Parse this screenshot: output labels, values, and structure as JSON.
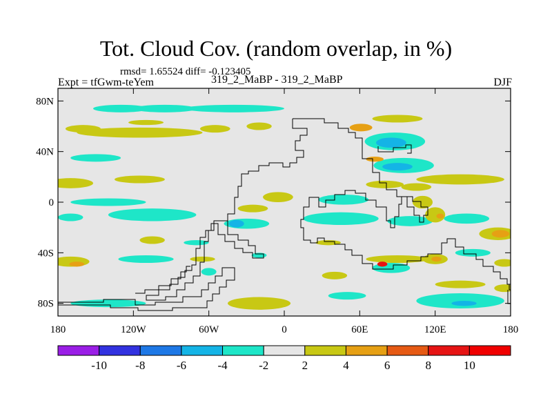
{
  "title": "Tot. Cloud Cov. (random overlap, in %)",
  "stats": "rmsd= 1.65524 diff= -0.123405",
  "expt": "Expt = tfGwm-teYem",
  "case_label": "319_2_MaBP - 319_2_MaBP",
  "season": "DJF",
  "chart_data": {
    "type": "heatmap",
    "title": "Tot. Cloud Cov. (random overlap, in %)",
    "xlim": [
      -180,
      180
    ],
    "ylim": [
      -90,
      90
    ],
    "x_ticks": [
      -180,
      -120,
      -60,
      0,
      60,
      120,
      180
    ],
    "x_tick_labels": [
      "180",
      "120W",
      "60W",
      "0",
      "60E",
      "120E",
      "180"
    ],
    "y_ticks": [
      80,
      40,
      0,
      -40,
      -80
    ],
    "y_tick_labels": [
      "80N",
      "40N",
      "0",
      "40S",
      "80S"
    ],
    "colorbar": {
      "levels": [
        -10,
        -8,
        -6,
        -4,
        -2,
        2,
        4,
        6,
        8,
        10
      ],
      "level_labels": [
        "-10",
        "-8",
        "-6",
        "-4",
        "-2",
        "2",
        "4",
        "6",
        "8",
        "10"
      ],
      "colors": [
        "#9a1ee6",
        "#3232e0",
        "#1e78e6",
        "#14b4e6",
        "#1ee6c8",
        "#e6e6e6",
        "#c8c814",
        "#e6a014",
        "#e65a14",
        "#e61414",
        "#f00000"
      ]
    },
    "anomaly_regions": [
      {
        "lon": -130,
        "lat": 74,
        "rx": 22,
        "ry": 3,
        "level": -3
      },
      {
        "lon": -95,
        "lat": 74,
        "rx": 25,
        "ry": 3,
        "level": -3
      },
      {
        "lon": -40,
        "lat": 74,
        "rx": 40,
        "ry": 3,
        "level": -3
      },
      {
        "lon": -160,
        "lat": 58,
        "rx": 14,
        "ry": 3,
        "level": 3
      },
      {
        "lon": -115,
        "lat": 55,
        "rx": 50,
        "ry": 4,
        "level": 3
      },
      {
        "lon": -110,
        "lat": 63,
        "rx": 14,
        "ry": 2,
        "level": 3
      },
      {
        "lon": -55,
        "lat": 58,
        "rx": 12,
        "ry": 3,
        "level": 3
      },
      {
        "lon": -20,
        "lat": 60,
        "rx": 10,
        "ry": 3,
        "level": 3
      },
      {
        "lon": 90,
        "lat": 66,
        "rx": 20,
        "ry": 3,
        "level": 3
      },
      {
        "lon": 61,
        "lat": 59,
        "rx": 9,
        "ry": 3,
        "level": 5
      },
      {
        "lon": 88,
        "lat": 48,
        "rx": 24,
        "ry": 7,
        "level": -3
      },
      {
        "lon": 85,
        "lat": 47,
        "rx": 12,
        "ry": 4,
        "level": -5
      },
      {
        "lon": 95,
        "lat": 29,
        "rx": 24,
        "ry": 6,
        "level": -3
      },
      {
        "lon": 90,
        "lat": 28,
        "rx": 12,
        "ry": 3,
        "level": -5
      },
      {
        "lon": 140,
        "lat": 18,
        "rx": 35,
        "ry": 4,
        "level": 3
      },
      {
        "lon": 72,
        "lat": 34,
        "rx": 7,
        "ry": 2,
        "level": 5
      },
      {
        "lon": -150,
        "lat": 35,
        "rx": 20,
        "ry": 3,
        "level": -3
      },
      {
        "lon": -170,
        "lat": 15,
        "rx": 18,
        "ry": 4,
        "level": 3
      },
      {
        "lon": -115,
        "lat": 18,
        "rx": 20,
        "ry": 3,
        "level": 3
      },
      {
        "lon": -140,
        "lat": 0,
        "rx": 30,
        "ry": 3,
        "level": -3
      },
      {
        "lon": -105,
        "lat": -10,
        "rx": 35,
        "ry": 5,
        "level": -3
      },
      {
        "lon": -170,
        "lat": -12,
        "rx": 10,
        "ry": 3,
        "level": -3
      },
      {
        "lon": -30,
        "lat": -17,
        "rx": 18,
        "ry": 4,
        "level": -3
      },
      {
        "lon": -38,
        "lat": -17,
        "rx": 6,
        "ry": 3,
        "level": -5
      },
      {
        "lon": -5,
        "lat": 4,
        "rx": 12,
        "ry": 4,
        "level": 3
      },
      {
        "lon": -25,
        "lat": -5,
        "rx": 12,
        "ry": 3,
        "level": 3
      },
      {
        "lon": 47,
        "lat": 2,
        "rx": 20,
        "ry": 4,
        "level": -3
      },
      {
        "lon": 45,
        "lat": -13,
        "rx": 30,
        "ry": 5,
        "level": -3
      },
      {
        "lon": 80,
        "lat": 14,
        "rx": 15,
        "ry": 3,
        "level": 3
      },
      {
        "lon": 105,
        "lat": 12,
        "rx": 12,
        "ry": 3,
        "level": 3
      },
      {
        "lon": 100,
        "lat": -15,
        "rx": 18,
        "ry": 4,
        "level": -3
      },
      {
        "lon": 145,
        "lat": -13,
        "rx": 18,
        "ry": 4,
        "level": -3
      },
      {
        "lon": 110,
        "lat": 0,
        "rx": 8,
        "ry": 5,
        "level": 3
      },
      {
        "lon": 120,
        "lat": -10,
        "rx": 8,
        "ry": 6,
        "level": 3
      },
      {
        "lon": 124,
        "lat": -11,
        "rx": 3,
        "ry": 2,
        "level": 5
      },
      {
        "lon": 170,
        "lat": -25,
        "rx": 15,
        "ry": 5,
        "level": 3
      },
      {
        "lon": 172,
        "lat": -25,
        "rx": 7,
        "ry": 3,
        "level": 5
      },
      {
        "lon": -170,
        "lat": -47,
        "rx": 15,
        "ry": 4,
        "level": 3
      },
      {
        "lon": -165,
        "lat": -49,
        "rx": 6,
        "ry": 2,
        "level": 5
      },
      {
        "lon": -110,
        "lat": -45,
        "rx": 22,
        "ry": 3,
        "level": -3
      },
      {
        "lon": -105,
        "lat": -30,
        "rx": 10,
        "ry": 3,
        "level": 3
      },
      {
        "lon": -70,
        "lat": -32,
        "rx": 10,
        "ry": 2,
        "level": -3
      },
      {
        "lon": -65,
        "lat": -45,
        "rx": 10,
        "ry": 2,
        "level": 3
      },
      {
        "lon": -20,
        "lat": -42,
        "rx": 6,
        "ry": 2,
        "level": -3
      },
      {
        "lon": 35,
        "lat": -32,
        "rx": 10,
        "ry": 2,
        "level": 3
      },
      {
        "lon": 40,
        "lat": -58,
        "rx": 10,
        "ry": 3,
        "level": 3
      },
      {
        "lon": 90,
        "lat": -45,
        "rx": 25,
        "ry": 3,
        "level": 3
      },
      {
        "lon": 85,
        "lat": -52,
        "rx": 15,
        "ry": 4,
        "level": -3
      },
      {
        "lon": 78,
        "lat": -49,
        "rx": 4,
        "ry": 2,
        "level": 9
      },
      {
        "lon": 120,
        "lat": -45,
        "rx": 10,
        "ry": 4,
        "level": 3
      },
      {
        "lon": 121,
        "lat": -45,
        "rx": 4,
        "ry": 2,
        "level": 5
      },
      {
        "lon": 150,
        "lat": -40,
        "rx": 14,
        "ry": 3,
        "level": -3
      },
      {
        "lon": 175,
        "lat": -48,
        "rx": 8,
        "ry": 3,
        "level": 3
      },
      {
        "lon": 175,
        "lat": -68,
        "rx": 8,
        "ry": 3,
        "level": 3
      },
      {
        "lon": 140,
        "lat": -65,
        "rx": 20,
        "ry": 3,
        "level": 3
      },
      {
        "lon": -20,
        "lat": -80,
        "rx": 25,
        "ry": 5,
        "level": 3
      },
      {
        "lon": -140,
        "lat": -80,
        "rx": 30,
        "ry": 3,
        "level": -3
      },
      {
        "lon": 140,
        "lat": -78,
        "rx": 35,
        "ry": 6,
        "level": -3
      },
      {
        "lon": 143,
        "lat": -80,
        "rx": 10,
        "ry": 2,
        "level": -5
      },
      {
        "lon": 50,
        "lat": -74,
        "rx": 15,
        "ry": 3,
        "level": -3
      },
      {
        "lon": -60,
        "lat": -55,
        "rx": 6,
        "ry": 3,
        "level": -3
      }
    ]
  }
}
